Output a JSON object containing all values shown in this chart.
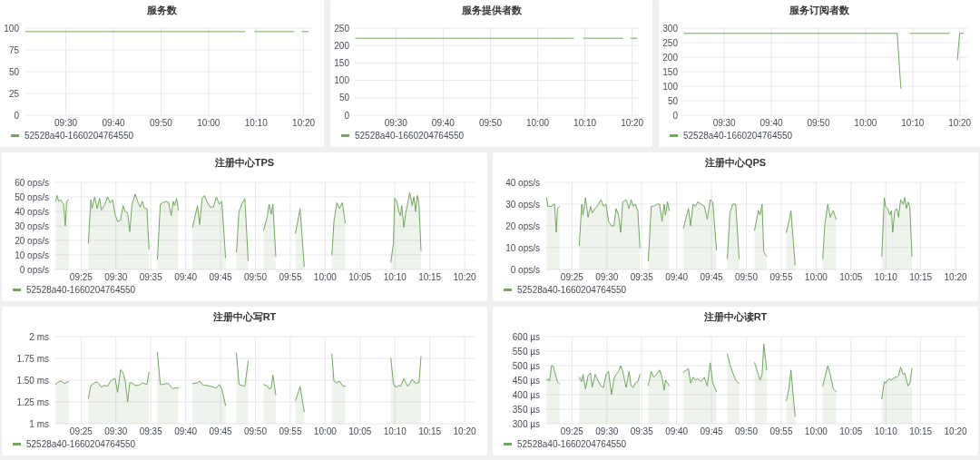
{
  "chart_data": [
    {
      "type": "line",
      "title": "服务数",
      "x": [
        9.358,
        10.127,
        10.145,
        10.162,
        10.3,
        10.314,
        10.328,
        10.35
      ],
      "series": [
        {
          "name": "52528a40-1660204764550",
          "color": "#73a65f",
          "values": [
            96,
            96,
            null,
            96,
            96,
            null,
            96,
            96
          ]
        }
      ],
      "xlim": [
        9.355,
        10.36
      ],
      "xticks": [
        {
          "value": 9.5,
          "label": "09:30"
        },
        {
          "value": 9.6667,
          "label": "09:40"
        },
        {
          "value": 9.8333,
          "label": "09:50"
        },
        {
          "value": 10,
          "label": "10:00"
        },
        {
          "value": 10.1667,
          "label": "10:10"
        },
        {
          "value": 10.3333,
          "label": "10:20"
        }
      ],
      "ylim": [
        0,
        100
      ],
      "yticks": [
        0,
        25,
        50,
        75,
        100
      ],
      "grid": true,
      "legend": "bottom"
    },
    {
      "type": "line",
      "title": "服务提供者数",
      "x": [
        9.358,
        10.127,
        10.145,
        10.162,
        10.3,
        10.314,
        10.328,
        10.35
      ],
      "series": [
        {
          "name": "52528a40-1660204764550",
          "color": "#73a65f",
          "values": [
            221,
            221,
            null,
            221,
            221,
            null,
            221,
            221
          ]
        }
      ],
      "xlim": [
        9.355,
        10.36
      ],
      "xticks": [
        {
          "value": 9.5,
          "label": "09:30"
        },
        {
          "value": 9.6667,
          "label": "09:40"
        },
        {
          "value": 9.8333,
          "label": "09:50"
        },
        {
          "value": 10,
          "label": "10:00"
        },
        {
          "value": 10.1667,
          "label": "10:10"
        },
        {
          "value": 10.3333,
          "label": "10:20"
        }
      ],
      "ylim": [
        0,
        250
      ],
      "yticks": [
        0,
        50,
        100,
        150,
        200,
        250
      ],
      "grid": true,
      "legend": "bottom"
    },
    {
      "type": "line",
      "title": "服务订阅者数",
      "x": [
        9.358,
        10.112,
        10.125,
        10.142,
        10.158,
        10.297,
        10.311,
        10.325,
        10.333,
        10.347
      ],
      "series": [
        {
          "name": "52528a40-1660204764550",
          "color": "#73a65f",
          "values": [
            282,
            282,
            93,
            null,
            282,
            282,
            null,
            190,
            282,
            282
          ]
        }
      ],
      "xlim": [
        9.355,
        10.36
      ],
      "xticks": [
        {
          "value": 9.5,
          "label": "09:30"
        },
        {
          "value": 9.6667,
          "label": "09:40"
        },
        {
          "value": 9.8333,
          "label": "09:50"
        },
        {
          "value": 10,
          "label": "10:00"
        },
        {
          "value": 10.1667,
          "label": "10:10"
        },
        {
          "value": 10.3333,
          "label": "10:20"
        }
      ],
      "ylim": [
        0,
        300
      ],
      "yticks": [
        0,
        50,
        100,
        150,
        200,
        250,
        300
      ],
      "grid": true,
      "legend": "bottom"
    },
    {
      "type": "area",
      "title": "注册中心TPS",
      "x": [
        9.356,
        9.359,
        9.363,
        9.368,
        9.372,
        9.375,
        9.379,
        9.382,
        9.387,
        9.41,
        9.434,
        9.44,
        9.443,
        9.449,
        9.455,
        9.461,
        9.465,
        9.472,
        9.48,
        9.486,
        9.492,
        9.498,
        9.504,
        9.511,
        9.517,
        9.522,
        9.528,
        9.533,
        9.538,
        9.546,
        9.553,
        9.558,
        9.563,
        9.568,
        9.574,
        9.579,
        9.59,
        9.599,
        9.606,
        9.612,
        9.619,
        9.626,
        9.632,
        9.637,
        9.64,
        9.645,
        9.649,
        9.666,
        9.683,
        9.695,
        9.7,
        9.706,
        9.712,
        9.717,
        9.725,
        9.733,
        9.74,
        9.747,
        9.753,
        9.762,
        9.775,
        9.788,
        9.794,
        9.801,
        9.808,
        9.816,
        9.835,
        9.853,
        9.862,
        9.866,
        9.871,
        9.875,
        9.882,
        9.908,
        9.929,
        9.935,
        9.94,
        9.945,
        9.95,
        9.98,
        10.016,
        10.021,
        10.028,
        10.034,
        10.041,
        10.048,
        10.1,
        10.157,
        10.163,
        10.166,
        10.171,
        10.176,
        10.18,
        10.183,
        10.188,
        10.193,
        10.197,
        10.202,
        10.208,
        10.212,
        10.216,
        10.22,
        10.224,
        10.229
      ],
      "series": [
        {
          "name": "52528a40-1660204764550",
          "color": "#73a65f",
          "values": [
            47,
            51,
            47,
            48,
            46,
            45,
            30,
            47,
            48,
            null,
            18,
            48,
            42,
            50,
            42,
            49,
            41,
            44,
            50,
            46,
            48,
            38,
            33,
            34,
            44,
            40,
            39,
            26,
            44,
            52,
            46,
            43,
            47,
            42,
            42,
            14,
            null,
            7,
            45,
            46,
            47,
            46,
            37,
            47,
            44,
            49,
            41,
            null,
            29,
            44,
            31,
            49,
            51,
            47,
            43,
            43,
            50,
            45,
            47,
            8,
            null,
            12,
            40,
            45,
            49,
            6,
            null,
            27,
            37,
            45,
            38,
            45,
            9,
            null,
            25,
            34,
            42,
            22,
            2,
            null,
            10,
            33,
            46,
            42,
            46,
            32,
            null,
            5,
            18,
            49,
            47,
            40,
            37,
            44,
            29,
            40,
            45,
            53,
            44,
            50,
            40,
            51,
            46,
            13
          ]
        }
      ],
      "xlim": [
        9.353,
        10.357
      ],
      "xticks": [
        {
          "value": 9.4167,
          "label": "09:25"
        },
        {
          "value": 9.5,
          "label": "09:30"
        },
        {
          "value": 9.5833,
          "label": "09:35"
        },
        {
          "value": 9.6667,
          "label": "09:40"
        },
        {
          "value": 9.75,
          "label": "09:45"
        },
        {
          "value": 9.8333,
          "label": "09:50"
        },
        {
          "value": 9.9167,
          "label": "09:55"
        },
        {
          "value": 10,
          "label": "10:00"
        },
        {
          "value": 10.0833,
          "label": "10:05"
        },
        {
          "value": 10.1667,
          "label": "10:10"
        },
        {
          "value": 10.25,
          "label": "10:15"
        },
        {
          "value": 10.3333,
          "label": "10:20"
        }
      ],
      "ylim": [
        0,
        60
      ],
      "yticks": [
        {
          "value": 0,
          "label": "0 ops/s"
        },
        {
          "value": 10,
          "label": "10 ops/s"
        },
        {
          "value": 20,
          "label": "20 ops/s"
        },
        {
          "value": 30,
          "label": "30 ops/s"
        },
        {
          "value": 40,
          "label": "40 ops/s"
        },
        {
          "value": 50,
          "label": "50 ops/s"
        },
        {
          "value": 60,
          "label": "60 ops/s"
        }
      ],
      "grid": true,
      "legend": "bottom"
    },
    {
      "type": "area",
      "title": "注册中心QPS",
      "x": [
        9.356,
        9.359,
        9.363,
        9.368,
        9.372,
        9.375,
        9.379,
        9.382,
        9.387,
        9.41,
        9.434,
        9.44,
        9.443,
        9.449,
        9.455,
        9.461,
        9.465,
        9.472,
        9.48,
        9.486,
        9.492,
        9.498,
        9.504,
        9.511,
        9.517,
        9.522,
        9.528,
        9.533,
        9.538,
        9.546,
        9.553,
        9.558,
        9.563,
        9.568,
        9.574,
        9.579,
        9.59,
        9.599,
        9.606,
        9.612,
        9.619,
        9.626,
        9.632,
        9.637,
        9.64,
        9.645,
        9.649,
        9.666,
        9.683,
        9.695,
        9.7,
        9.706,
        9.712,
        9.717,
        9.725,
        9.733,
        9.74,
        9.747,
        9.753,
        9.762,
        9.775,
        9.788,
        9.794,
        9.801,
        9.808,
        9.816,
        9.835,
        9.853,
        9.862,
        9.866,
        9.871,
        9.875,
        9.882,
        9.908,
        9.929,
        9.935,
        9.94,
        9.945,
        9.95,
        9.98,
        10.016,
        10.021,
        10.028,
        10.034,
        10.041,
        10.048,
        10.1,
        10.157,
        10.163,
        10.166,
        10.171,
        10.176,
        10.18,
        10.183,
        10.188,
        10.193,
        10.197,
        10.202,
        10.208,
        10.212,
        10.216,
        10.22,
        10.224,
        10.229
      ],
      "series": [
        {
          "name": "52528a40-1660204764550",
          "color": "#73a65f",
          "values": [
            33,
            29,
            29,
            29,
            30,
            30,
            17,
            28,
            29,
            null,
            11,
            30,
            25,
            33,
            24,
            29,
            26,
            28,
            30,
            32,
            29,
            30,
            22,
            20,
            20,
            28,
            25,
            17,
            31,
            32,
            28,
            32,
            29,
            30,
            27,
            10,
            null,
            4,
            29,
            29,
            30,
            30,
            22,
            30,
            25,
            31,
            27,
            null,
            19,
            28,
            20,
            30,
            29,
            31,
            30,
            29,
            23,
            32,
            31,
            9,
            null,
            5,
            26,
            30,
            30,
            5,
            null,
            18,
            27,
            25,
            30,
            8,
            6,
            null,
            17,
            22,
            27,
            14,
            2,
            null,
            5,
            21,
            30,
            24,
            27,
            23,
            null,
            6,
            33,
            29,
            28,
            25,
            27,
            17,
            27,
            28,
            24,
            32,
            30,
            33,
            28,
            31,
            29,
            6
          ]
        }
      ],
      "xlim": [
        9.353,
        10.357
      ],
      "xticks": [
        {
          "value": 9.4167,
          "label": "09:25"
        },
        {
          "value": 9.5,
          "label": "09:30"
        },
        {
          "value": 9.5833,
          "label": "09:35"
        },
        {
          "value": 9.6667,
          "label": "09:40"
        },
        {
          "value": 9.75,
          "label": "09:45"
        },
        {
          "value": 9.8333,
          "label": "09:50"
        },
        {
          "value": 9.9167,
          "label": "09:55"
        },
        {
          "value": 10,
          "label": "10:00"
        },
        {
          "value": 10.0833,
          "label": "10:05"
        },
        {
          "value": 10.1667,
          "label": "10:10"
        },
        {
          "value": 10.25,
          "label": "10:15"
        },
        {
          "value": 10.3333,
          "label": "10:20"
        }
      ],
      "ylim": [
        0,
        40
      ],
      "yticks": [
        {
          "value": 0,
          "label": "0 ops/s"
        },
        {
          "value": 10,
          "label": "10 ops/s"
        },
        {
          "value": 20,
          "label": "20 ops/s"
        },
        {
          "value": 30,
          "label": "30 ops/s"
        },
        {
          "value": 40,
          "label": "40 ops/s"
        }
      ],
      "grid": true,
      "legend": "bottom"
    },
    {
      "type": "area",
      "title": "注册中心写RT",
      "x": [
        9.356,
        9.359,
        9.363,
        9.368,
        9.372,
        9.375,
        9.379,
        9.382,
        9.387,
        9.41,
        9.434,
        9.44,
        9.443,
        9.449,
        9.455,
        9.461,
        9.465,
        9.472,
        9.48,
        9.486,
        9.492,
        9.498,
        9.504,
        9.511,
        9.517,
        9.522,
        9.528,
        9.533,
        9.538,
        9.546,
        9.553,
        9.558,
        9.563,
        9.568,
        9.574,
        9.579,
        9.59,
        9.599,
        9.606,
        9.612,
        9.619,
        9.626,
        9.632,
        9.637,
        9.64,
        9.645,
        9.649,
        9.666,
        9.683,
        9.695,
        9.7,
        9.706,
        9.712,
        9.717,
        9.725,
        9.733,
        9.74,
        9.747,
        9.753,
        9.762,
        9.775,
        9.788,
        9.794,
        9.801,
        9.808,
        9.816,
        9.835,
        9.853,
        9.862,
        9.866,
        9.871,
        9.875,
        9.882,
        9.908,
        9.929,
        9.935,
        9.94,
        9.945,
        9.95,
        9.98,
        10.016,
        10.021,
        10.028,
        10.034,
        10.041,
        10.048,
        10.1,
        10.157,
        10.163,
        10.166,
        10.171,
        10.176,
        10.18,
        10.183,
        10.188,
        10.193,
        10.197,
        10.202,
        10.208,
        10.212,
        10.216,
        10.22,
        10.224,
        10.229
      ],
      "series": [
        {
          "name": "52528a40-1660204764550",
          "color": "#73a65f",
          "values": [
            1.45,
            1.47,
            1.48,
            1.49,
            1.48,
            1.47,
            1.46,
            1.48,
            1.48,
            null,
            1.29,
            1.44,
            1.45,
            1.47,
            1.48,
            1.45,
            1.42,
            1.44,
            1.43,
            1.48,
            1.51,
            1.52,
            1.36,
            1.62,
            1.58,
            1.5,
            1.25,
            1.47,
            1.47,
            1.44,
            1.44,
            1.45,
            1.47,
            1.46,
            1.45,
            1.59,
            null,
            1.82,
            1.45,
            1.45,
            1.46,
            1.46,
            1.42,
            1.4,
            1.41,
            1.41,
            1.41,
            null,
            1.46,
            1.47,
            1.49,
            1.45,
            1.44,
            1.44,
            1.43,
            1.42,
            1.41,
            1.45,
            1.4,
            1.21,
            null,
            1.81,
            1.45,
            1.44,
            1.43,
            1.72,
            null,
            1.45,
            1.43,
            1.4,
            1.41,
            1.56,
            1.33,
            null,
            1.27,
            1.35,
            1.43,
            1.28,
            1.14,
            null,
            1.8,
            1.49,
            1.47,
            1.49,
            1.44,
            1.43,
            null,
            1.75,
            1.47,
            1.43,
            1.42,
            1.44,
            1.43,
            1.46,
            1.52,
            1.47,
            1.43,
            1.46,
            1.51,
            1.49,
            1.46,
            1.47,
            1.47,
            1.77
          ]
        }
      ],
      "xlim": [
        9.353,
        10.357
      ],
      "xticks": [
        {
          "value": 9.4167,
          "label": "09:25"
        },
        {
          "value": 9.5,
          "label": "09:30"
        },
        {
          "value": 9.5833,
          "label": "09:35"
        },
        {
          "value": 9.6667,
          "label": "09:40"
        },
        {
          "value": 9.75,
          "label": "09:45"
        },
        {
          "value": 9.8333,
          "label": "09:50"
        },
        {
          "value": 9.9167,
          "label": "09:55"
        },
        {
          "value": 10,
          "label": "10:00"
        },
        {
          "value": 10.0833,
          "label": "10:05"
        },
        {
          "value": 10.1667,
          "label": "10:10"
        },
        {
          "value": 10.25,
          "label": "10:15"
        },
        {
          "value": 10.3333,
          "label": "10:20"
        }
      ],
      "ylim": [
        1,
        2
      ],
      "yticks": [
        {
          "value": 1,
          "label": "1 ms"
        },
        {
          "value": 1.25,
          "label": "1.25 ms"
        },
        {
          "value": 1.5,
          "label": "1.50 ms"
        },
        {
          "value": 1.75,
          "label": "1.75 ms"
        },
        {
          "value": 2,
          "label": "2 ms"
        }
      ],
      "grid": true,
      "legend": "bottom"
    },
    {
      "type": "area",
      "title": "注册中心读RT",
      "x": [
        9.356,
        9.359,
        9.363,
        9.368,
        9.372,
        9.375,
        9.379,
        9.382,
        9.387,
        9.41,
        9.434,
        9.44,
        9.443,
        9.449,
        9.455,
        9.461,
        9.465,
        9.472,
        9.48,
        9.486,
        9.492,
        9.498,
        9.504,
        9.511,
        9.517,
        9.522,
        9.528,
        9.533,
        9.538,
        9.546,
        9.553,
        9.558,
        9.563,
        9.568,
        9.574,
        9.579,
        9.59,
        9.599,
        9.606,
        9.612,
        9.619,
        9.626,
        9.632,
        9.637,
        9.64,
        9.645,
        9.649,
        9.666,
        9.683,
        9.695,
        9.7,
        9.706,
        9.712,
        9.717,
        9.725,
        9.733,
        9.74,
        9.747,
        9.753,
        9.762,
        9.775,
        9.788,
        9.794,
        9.801,
        9.808,
        9.816,
        9.835,
        9.853,
        9.862,
        9.866,
        9.871,
        9.875,
        9.882,
        9.908,
        9.929,
        9.935,
        9.94,
        9.945,
        9.95,
        9.98,
        10.016,
        10.021,
        10.028,
        10.034,
        10.041,
        10.048,
        10.1,
        10.157,
        10.163,
        10.166,
        10.171,
        10.176,
        10.18,
        10.183,
        10.188,
        10.193,
        10.197,
        10.202,
        10.208,
        10.212,
        10.216,
        10.22,
        10.224,
        10.229
      ],
      "series": [
        {
          "name": "52528a40-1660204764550",
          "color": "#73a65f",
          "values": [
            450,
            455,
            447,
            500,
            498,
            480,
            460,
            445,
            437,
            null,
            460,
            445,
            470,
            420,
            465,
            475,
            425,
            470,
            445,
            430,
            425,
            470,
            480,
            400,
            455,
            470,
            480,
            500,
            480,
            425,
            480,
            430,
            425,
            440,
            445,
            470,
            null,
            432,
            480,
            460,
            470,
            485,
            460,
            415,
            450,
            440,
            430,
            null,
            478,
            490,
            440,
            460,
            450,
            455,
            445,
            460,
            430,
            510,
            440,
            410,
            null,
            540,
            505,
            475,
            450,
            438,
            null,
            510,
            470,
            450,
            470,
            575,
            485,
            null,
            380,
            420,
            485,
            400,
            325,
            null,
            430,
            460,
            500,
            470,
            420,
            410,
            null,
            385,
            445,
            440,
            450,
            455,
            450,
            455,
            460,
            460,
            465,
            495,
            470,
            475,
            450,
            430,
            440,
            490
          ]
        }
      ],
      "xlim": [
        9.353,
        10.357
      ],
      "xticks": [
        {
          "value": 9.4167,
          "label": "09:25"
        },
        {
          "value": 9.5,
          "label": "09:30"
        },
        {
          "value": 9.5833,
          "label": "09:35"
        },
        {
          "value": 9.6667,
          "label": "09:40"
        },
        {
          "value": 9.75,
          "label": "09:45"
        },
        {
          "value": 9.8333,
          "label": "09:50"
        },
        {
          "value": 9.9167,
          "label": "09:55"
        },
        {
          "value": 10,
          "label": "10:00"
        },
        {
          "value": 10.0833,
          "label": "10:05"
        },
        {
          "value": 10.1667,
          "label": "10:10"
        },
        {
          "value": 10.25,
          "label": "10:15"
        },
        {
          "value": 10.3333,
          "label": "10:20"
        }
      ],
      "ylim": [
        300,
        600
      ],
      "yticks": [
        {
          "value": 300,
          "label": "300 µs"
        },
        {
          "value": 350,
          "label": "350 µs"
        },
        {
          "value": 400,
          "label": "400 µs"
        },
        {
          "value": 450,
          "label": "450 µs"
        },
        {
          "value": 500,
          "label": "500 µs"
        },
        {
          "value": 550,
          "label": "550 µs"
        },
        {
          "value": 600,
          "label": "600 µs"
        }
      ],
      "grid": true,
      "legend": "bottom"
    }
  ]
}
